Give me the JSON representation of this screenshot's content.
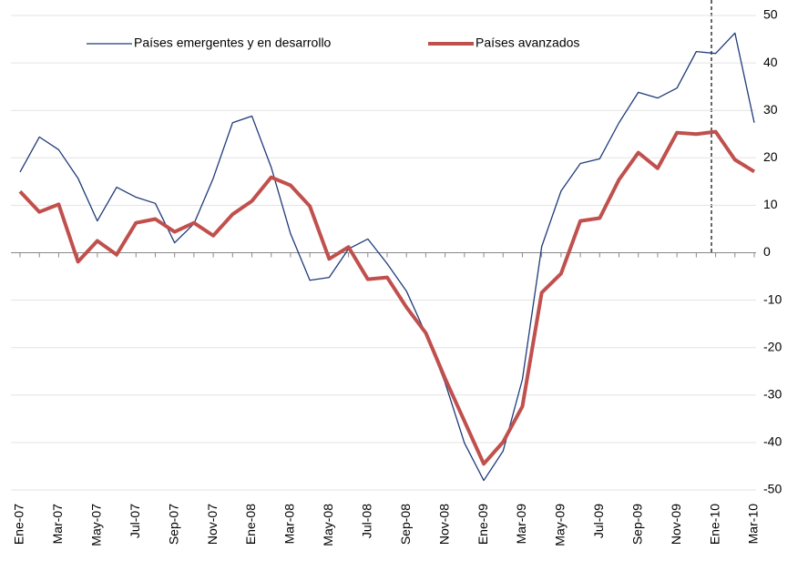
{
  "chart_data": {
    "type": "line",
    "categories": [
      "Ene-07",
      null,
      "Mar-07",
      null,
      "May-07",
      null,
      "Jul-07",
      null,
      "Sep-07",
      null,
      "Nov-07",
      null,
      "Ene-08",
      null,
      "Mar-08",
      null,
      "May-08",
      null,
      "Jul-08",
      null,
      "Sep-08",
      null,
      "Nov-08",
      null,
      "Ene-09",
      null,
      "Mar-09",
      null,
      "May-09",
      null,
      "Jul-09",
      null,
      "Sep-09",
      null,
      "Nov-09",
      null,
      "Ene-10",
      null,
      "Mar-10"
    ],
    "series": [
      {
        "name": "Países emergentes y en desarrollo",
        "color": "#1f3a7a",
        "width": 1.3,
        "values": [
          17,
          24.4,
          21.7,
          15.7,
          6.7,
          13.8,
          11.7,
          10.4,
          2.1,
          6.1,
          15.7,
          27.4,
          28.8,
          18,
          4,
          -5.8,
          -5.2,
          0.8,
          2.9,
          -2.3,
          -8.1,
          -17.1,
          -27.4,
          -40.1,
          -48,
          -41.8,
          -26.7,
          1.3,
          13,
          18.8,
          19.8,
          27.4,
          33.8,
          32.6,
          34.7,
          42.4,
          42,
          46.3,
          27.4
        ]
      },
      {
        "name": "Países avanzados",
        "color": "#c0504d",
        "width": 4,
        "values": [
          12.9,
          8.6,
          10.2,
          -1.9,
          2.5,
          -0.4,
          6.3,
          7.1,
          4.4,
          6.3,
          3.6,
          8.1,
          10.9,
          15.9,
          14.2,
          9.8,
          -1.3,
          1.2,
          -5.6,
          -5.2,
          -11.5,
          -16.9,
          -26.5,
          -35.5,
          -44.5,
          -39.9,
          -32.4,
          -8.4,
          -4.4,
          6.7,
          7.3,
          15.4,
          21.1,
          17.8,
          25.3,
          25,
          25.5,
          19.6,
          17.1
        ]
      }
    ],
    "ylim": [
      -50,
      50
    ],
    "yticks": [
      -50,
      -40,
      -30,
      -20,
      -10,
      0,
      10,
      20,
      30,
      40,
      50
    ],
    "grid": true
  }
}
